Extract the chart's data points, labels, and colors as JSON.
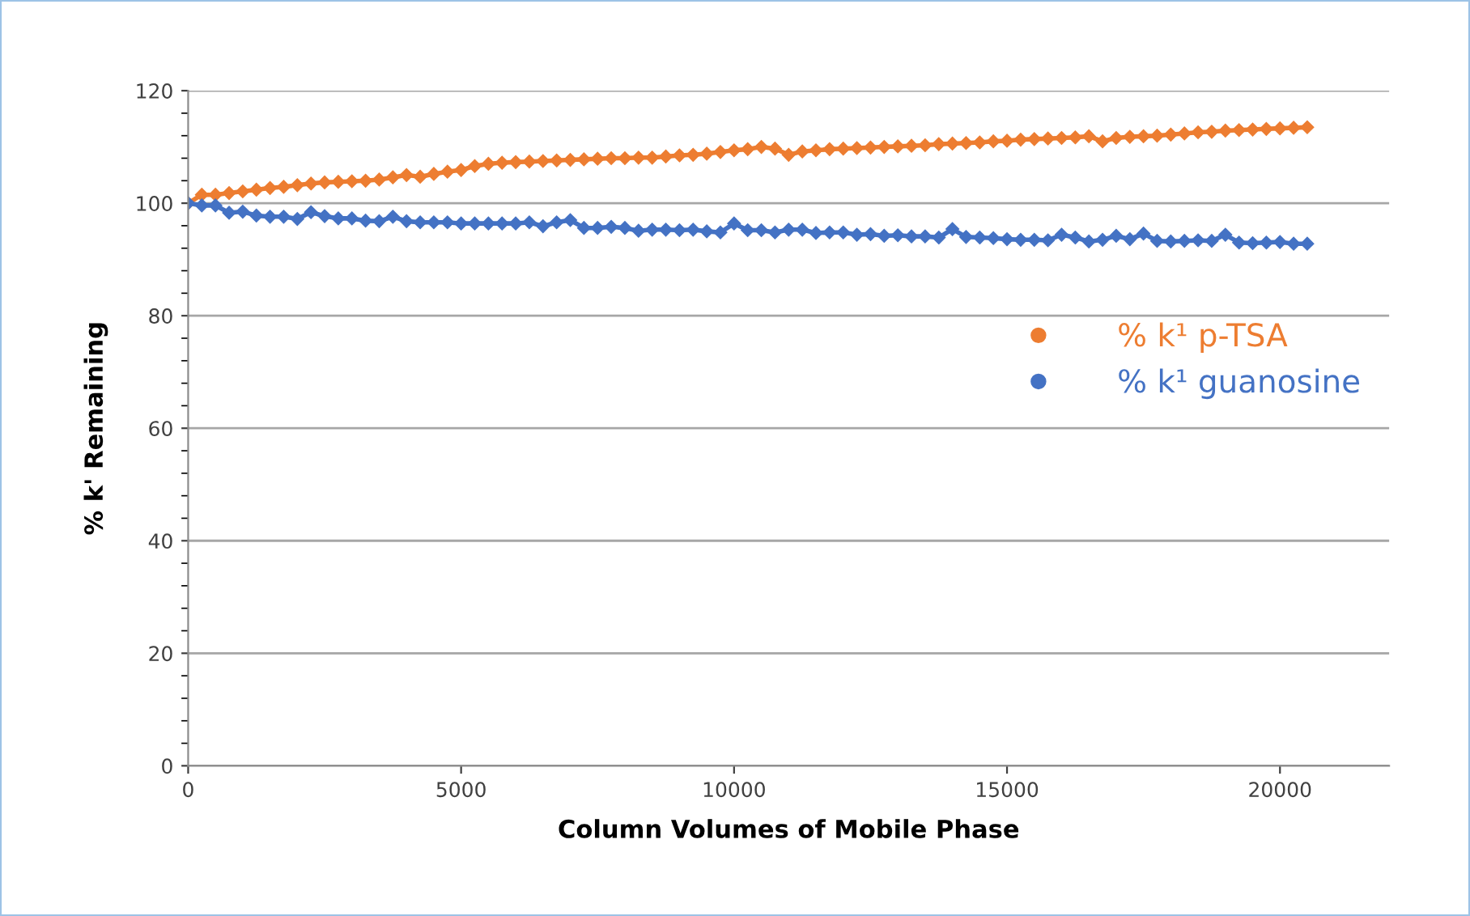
{
  "chart_data": {
    "type": "line",
    "xlabel": "Column Volumes of Mobile Phase",
    "ylabel": "% k' Remaining",
    "x": [
      0,
      250,
      500,
      750,
      1000,
      1250,
      1500,
      1750,
      2000,
      2250,
      2500,
      2750,
      3000,
      3250,
      3500,
      3750,
      4000,
      4250,
      4500,
      4750,
      5000,
      5250,
      5500,
      5750,
      6000,
      6250,
      6500,
      6750,
      7000,
      7250,
      7500,
      7750,
      8000,
      8250,
      8500,
      8750,
      9000,
      9250,
      9500,
      9750,
      10000,
      10250,
      10500,
      10750,
      11000,
      11250,
      11500,
      11750,
      12000,
      12250,
      12500,
      12750,
      13000,
      13250,
      13500,
      13750,
      14000,
      14250,
      14500,
      14750,
      15000,
      15250,
      15500,
      15750,
      16000,
      16250,
      16500,
      16750,
      17000,
      17250,
      17500,
      17750,
      18000,
      18250,
      18500,
      18750,
      19000,
      19250,
      19500,
      19750,
      20000,
      20250,
      20500
    ],
    "series": [
      {
        "name": "% k¹ p-TSA",
        "color": "#ed7d31",
        "values": [
          100,
          101.5,
          101.5,
          101.8,
          102.1,
          102.4,
          102.7,
          102.9,
          103.2,
          103.5,
          103.7,
          103.8,
          103.9,
          104.0,
          104.2,
          104.6,
          105.0,
          104.7,
          105.2,
          105.6,
          105.9,
          106.6,
          107.0,
          107.2,
          107.3,
          107.4,
          107.5,
          107.6,
          107.7,
          107.8,
          107.9,
          108.0,
          108.0,
          108.1,
          108.1,
          108.3,
          108.5,
          108.6,
          108.8,
          109.1,
          109.4,
          109.6,
          110.0,
          109.7,
          108.6,
          109.2,
          109.4,
          109.6,
          109.7,
          109.8,
          109.9,
          110.0,
          110.1,
          110.2,
          110.3,
          110.5,
          110.6,
          110.7,
          110.8,
          111.0,
          111.1,
          111.3,
          111.4,
          111.5,
          111.6,
          111.7,
          111.9,
          111.0,
          111.6,
          111.8,
          111.9,
          112.0,
          112.2,
          112.4,
          112.6,
          112.7,
          112.9,
          113.0,
          113.1,
          113.2,
          113.3,
          113.4,
          113.5
        ]
      },
      {
        "name": "% k¹ guanosine",
        "color": "#4472c4",
        "values": [
          100,
          99.6,
          99.6,
          98.3,
          98.5,
          97.8,
          97.6,
          97.6,
          97.2,
          98.4,
          97.7,
          97.3,
          97.3,
          96.9,
          96.8,
          97.6,
          96.8,
          96.6,
          96.6,
          96.6,
          96.4,
          96.4,
          96.4,
          96.4,
          96.4,
          96.6,
          95.9,
          96.6,
          97.0,
          95.6,
          95.6,
          95.8,
          95.6,
          95.1,
          95.3,
          95.3,
          95.2,
          95.3,
          95.0,
          94.8,
          96.4,
          95.2,
          95.2,
          94.8,
          95.3,
          95.3,
          94.7,
          94.8,
          94.8,
          94.4,
          94.5,
          94.2,
          94.3,
          94.1,
          94.1,
          93.9,
          95.4,
          94.0,
          93.9,
          93.8,
          93.6,
          93.5,
          93.5,
          93.4,
          94.4,
          93.9,
          93.2,
          93.5,
          94.2,
          93.6,
          94.6,
          93.3,
          93.2,
          93.3,
          93.4,
          93.3,
          94.4,
          93.0,
          92.9,
          93.0,
          93.1,
          92.8,
          92.8
        ]
      }
    ],
    "xlim": [
      0,
      22000
    ],
    "xticks": [
      0,
      5000,
      10000,
      15000,
      20000
    ],
    "ylim": [
      0,
      120
    ],
    "yticks": [
      0,
      20,
      40,
      60,
      80,
      100,
      120
    ],
    "grid": "y",
    "legend": "right",
    "marker": "diamond",
    "line_style": "solid"
  }
}
